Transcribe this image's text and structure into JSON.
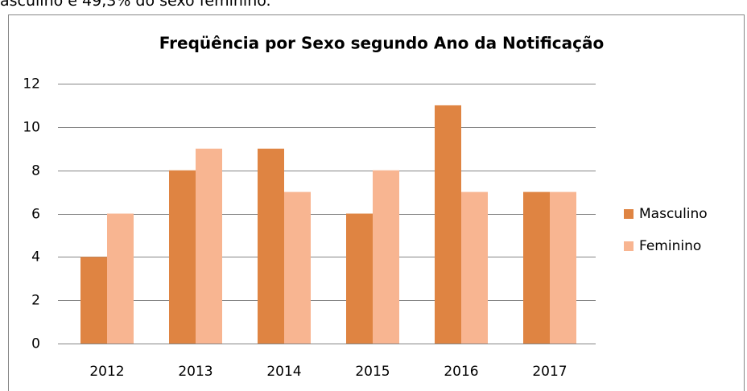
{
  "caption_text": "asculino e 49,3% do sexo feminino.",
  "chart_data": {
    "type": "bar",
    "title": "Freqüência por Sexo segundo Ano da Notificação",
    "categories": [
      "2012",
      "2013",
      "2014",
      "2015",
      "2016",
      "2017"
    ],
    "series": [
      {
        "name": "Masculino",
        "color": "#df8442",
        "values": [
          4,
          8,
          9,
          6,
          11,
          7
        ]
      },
      {
        "name": "Feminino",
        "color": "#f8b591",
        "values": [
          6,
          9,
          7,
          8,
          7,
          7
        ]
      }
    ],
    "ylim": [
      0,
      12
    ],
    "yticks": [
      0,
      2,
      4,
      6,
      8,
      10,
      12
    ],
    "grid": true,
    "legend": "right"
  }
}
